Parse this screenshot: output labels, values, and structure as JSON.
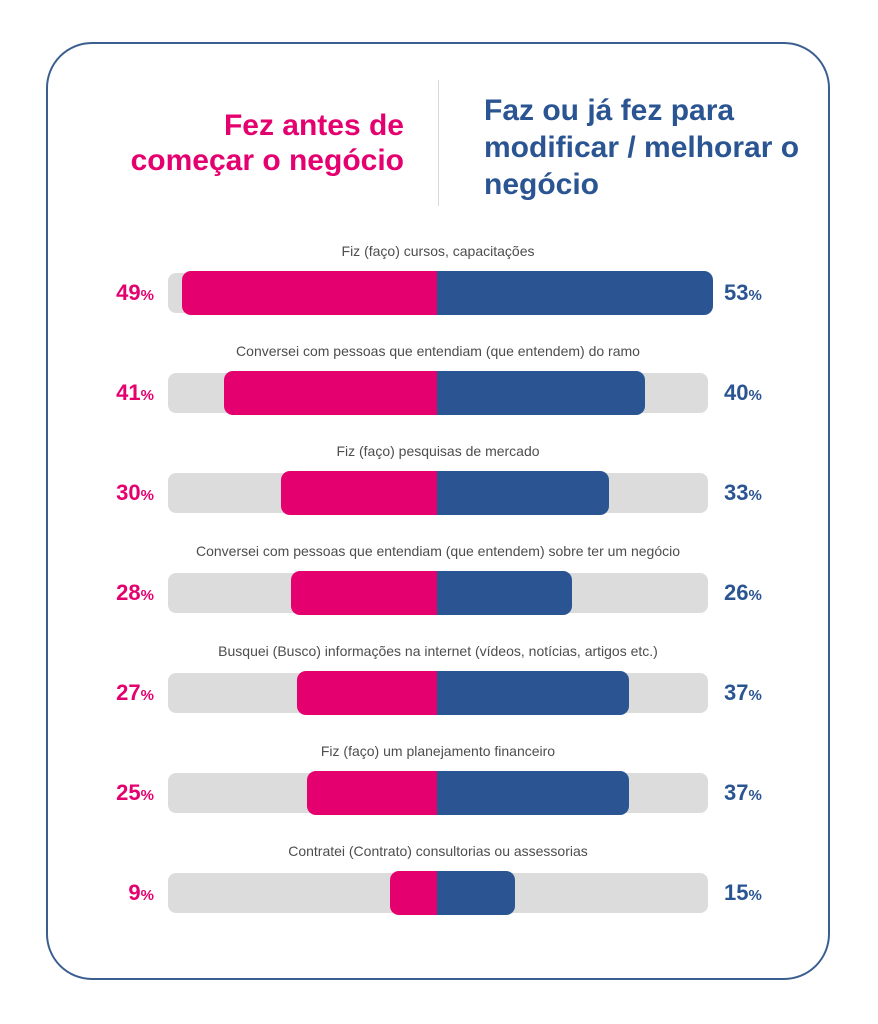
{
  "header": {
    "left_title": "Fez antes de começar o negócio",
    "right_title": "Faz ou já fez para modificar / melhorar o negócio"
  },
  "colors": {
    "left_series": "#e5006f",
    "right_series": "#2a5592",
    "track": "#dcdcdc",
    "border": "#3a5f8f"
  },
  "percent_symbol": "%",
  "chart_data": {
    "type": "bar",
    "orientation": "diverging-horizontal",
    "categories": [
      "Fiz (faço) cursos, capacitações",
      "Conversei com pessoas que entendiam (que entendem) do ramo",
      "Fiz (faço) pesquisas de mercado",
      "Conversei com pessoas que entendiam (que entendem) sobre ter um negócio",
      "Busquei (Busco) informações na internet (vídeos, notícias, artigos etc.)",
      "Fiz (faço) um planejamento financeiro",
      "Contratei (Contrato) consultorias ou assessorias"
    ],
    "series": [
      {
        "name": "Fez antes de começar o negócio",
        "values": [
          49,
          41,
          30,
          28,
          27,
          25,
          9
        ]
      },
      {
        "name": "Faz ou já fez para modificar / melhorar o negócio",
        "values": [
          53,
          40,
          33,
          26,
          37,
          37,
          15
        ]
      }
    ],
    "unit": "%",
    "xlim": [
      0,
      100
    ],
    "grid": false,
    "legend": "top"
  }
}
